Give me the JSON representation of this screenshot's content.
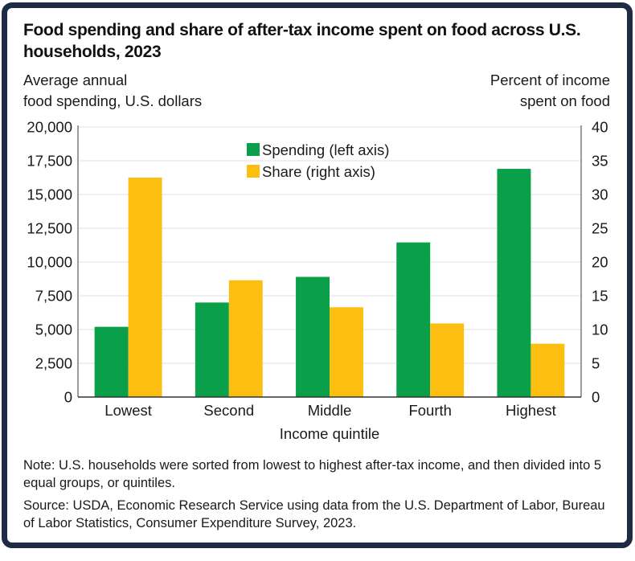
{
  "colors": {
    "frame": "#1e2b45",
    "spending": "#0aa04a",
    "share": "#fdbe12",
    "grid": "#e6e6e6",
    "axis": "#666666",
    "text": "#1a1a1a"
  },
  "chart_data": {
    "type": "bar",
    "title": "Food spending and share of after-tax income spent on food across U.S. households, 2023",
    "xlabel": "Income quintile",
    "ylabel_left": [
      "Average annual",
      "food spending, U.S. dollars"
    ],
    "ylabel_right": [
      "Percent of income",
      "spent on food"
    ],
    "categories": [
      "Lowest",
      "Second",
      "Middle",
      "Fourth",
      "Highest"
    ],
    "series": [
      {
        "name": "Spending (left axis)",
        "axis": "left",
        "color": "#0aa04a",
        "values": [
          5200,
          7000,
          8900,
          11450,
          16900
        ]
      },
      {
        "name": "Share (right axis)",
        "axis": "right",
        "color": "#fdbe12",
        "values": [
          32.5,
          17.3,
          13.3,
          10.9,
          7.9
        ]
      }
    ],
    "ylim_left": [
      0,
      20000
    ],
    "ylim_right": [
      0,
      40
    ],
    "yticks_left": [
      "0",
      "2,500",
      "5,000",
      "7,500",
      "10,000",
      "12,500",
      "15,000",
      "17,500",
      "20,000"
    ],
    "yticks_left_values": [
      0,
      2500,
      5000,
      7500,
      10000,
      12500,
      15000,
      17500,
      20000
    ],
    "yticks_right": [
      "0",
      "5",
      "10",
      "15",
      "20",
      "25",
      "30",
      "35",
      "40"
    ],
    "yticks_right_values": [
      0,
      5,
      10,
      15,
      20,
      25,
      30,
      35,
      40
    ],
    "grid": true,
    "legend_position": "top-center"
  },
  "header": {
    "title": "Food spending and share of after-tax income spent on food across U.S. households, 2023"
  },
  "footer": {
    "note": "Note: U.S. households were sorted from lowest to highest after-tax income, and then divided into 5 equal groups, or quintiles.",
    "source": "Source: USDA, Economic Research Service using data from the U.S. Department of Labor, Bureau of Labor Statistics, Consumer Expenditure Survey, 2023."
  }
}
